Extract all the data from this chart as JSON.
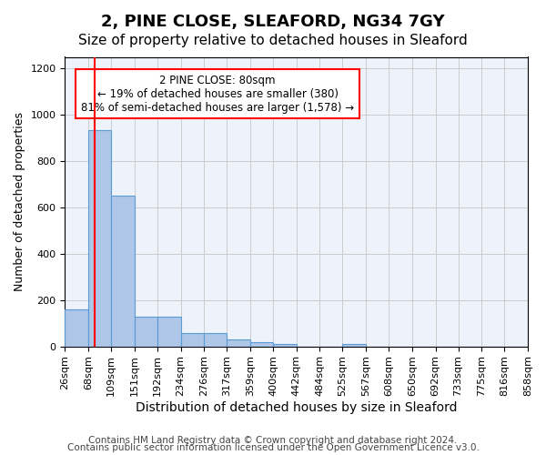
{
  "title1": "2, PINE CLOSE, SLEAFORD, NG34 7GY",
  "title2": "Size of property relative to detached houses in Sleaford",
  "xlabel": "Distribution of detached houses by size in Sleaford",
  "ylabel": "Number of detached properties",
  "footer1": "Contains HM Land Registry data © Crown copyright and database right 2024.",
  "footer2": "Contains public sector information licensed under the Open Government Licence v3.0.",
  "annotation_title": "2 PINE CLOSE: 80sqm",
  "annotation_line1": "← 19% of detached houses are smaller (380)",
  "annotation_line2": "81% of semi-detached houses are larger (1,578) →",
  "bar_edges": [
    26,
    68,
    109,
    151,
    192,
    234,
    276,
    317,
    359,
    400,
    442,
    484,
    525,
    567,
    608,
    650,
    692,
    733,
    775,
    816,
    858
  ],
  "bar_heights": [
    160,
    935,
    650,
    130,
    130,
    57,
    57,
    30,
    20,
    10,
    0,
    0,
    12,
    0,
    0,
    0,
    0,
    0,
    0,
    0
  ],
  "bar_color": "#aec6e8",
  "bar_edge_color": "#5b9bd5",
  "vline_x": 80,
  "vline_color": "red",
  "ylim": [
    0,
    1250
  ],
  "yticks": [
    0,
    200,
    400,
    600,
    800,
    1000,
    1200
  ],
  "background_color": "#eef2fb",
  "grid_color": "#cccccc",
  "title1_fontsize": 13,
  "title2_fontsize": 11,
  "xlabel_fontsize": 10,
  "ylabel_fontsize": 9,
  "tick_fontsize": 8,
  "footer_fontsize": 7.5
}
